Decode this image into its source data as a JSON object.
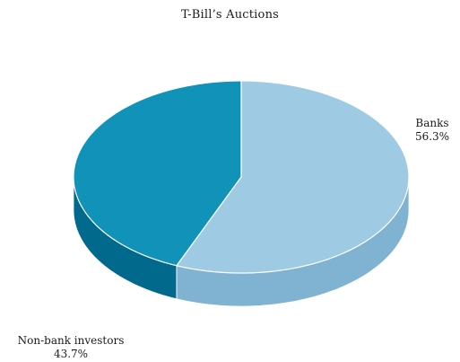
{
  "chart_data": {
    "type": "pie",
    "style": "3d",
    "title": "T-Bill’s Auctions",
    "slices": [
      {
        "label": "Banks",
        "value": 56.3,
        "value_label": "56.3%",
        "top_color": "#9ecbe3",
        "side_color": "#7fb3d1"
      },
      {
        "label": "Non-bank investors",
        "value": 43.7,
        "value_label": "43.7%",
        "top_color": "#1192b9",
        "side_color": "#00698c"
      }
    ]
  }
}
